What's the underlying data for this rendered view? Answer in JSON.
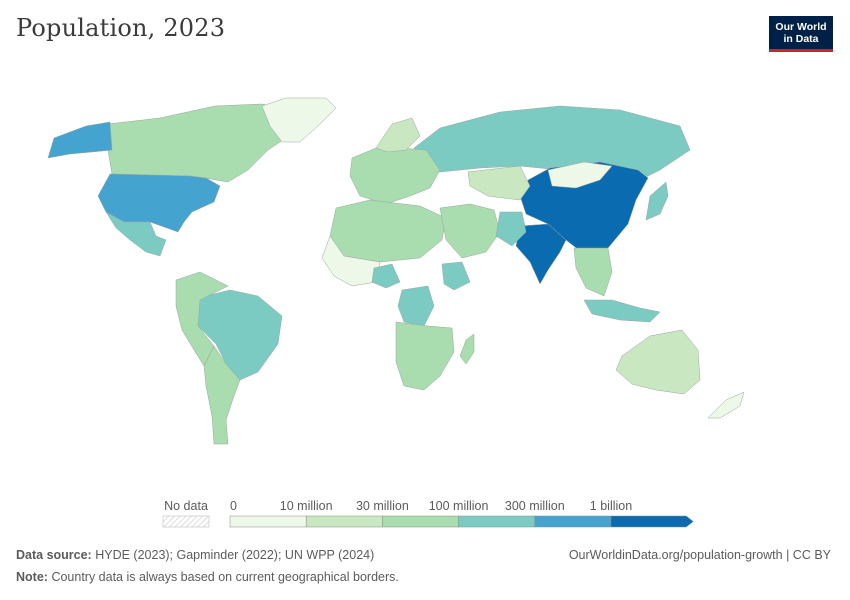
{
  "header": {
    "title": "Population, 2023",
    "logo_line1": "Our World",
    "logo_line2": "in Data"
  },
  "legend": {
    "no_data_label": "No data",
    "bins": [
      {
        "label": "0",
        "color": "#eef8e8"
      },
      {
        "label": "10 million",
        "color": "#c9e8c2"
      },
      {
        "label": "30 million",
        "color": "#a9dcaf"
      },
      {
        "label": "100 million",
        "color": "#7ccbc3"
      },
      {
        "label": "300 million",
        "color": "#44a3cf"
      },
      {
        "label": "1 billion",
        "color": "#0a6bb0"
      }
    ]
  },
  "footer": {
    "source_label": "Data source:",
    "source_text": "HYDE (2023); Gapminder (2022); UN WPP (2024)",
    "url_text": "OurWorldinData.org/population-growth | CC BY",
    "note_label": "Note:",
    "note_text": "Country data is always based on current geographical borders."
  },
  "map_regions": [
    {
      "name": "canada",
      "color": "#a9dcaf"
    },
    {
      "name": "alaska",
      "color": "#44a3cf"
    },
    {
      "name": "usa",
      "color": "#44a3cf"
    },
    {
      "name": "mexico",
      "color": "#7ccbc3"
    },
    {
      "name": "greenland",
      "color": "#eef8e8"
    },
    {
      "name": "brazil",
      "color": "#7ccbc3"
    },
    {
      "name": "south-america-west",
      "color": "#a9dcaf"
    },
    {
      "name": "argentina",
      "color": "#a9dcaf"
    },
    {
      "name": "russia",
      "color": "#7ccbc3"
    },
    {
      "name": "china",
      "color": "#0a6bb0"
    },
    {
      "name": "india",
      "color": "#0a6bb0"
    },
    {
      "name": "mongolia",
      "color": "#eef8e8"
    },
    {
      "name": "kazakhstan",
      "color": "#c9e8c2"
    },
    {
      "name": "europe",
      "color": "#a9dcaf"
    },
    {
      "name": "scandinavia",
      "color": "#c9e8c2"
    },
    {
      "name": "north-africa",
      "color": "#a9dcaf"
    },
    {
      "name": "sahel",
      "color": "#eef8e8"
    },
    {
      "name": "nigeria",
      "color": "#7ccbc3"
    },
    {
      "name": "ethiopia",
      "color": "#7ccbc3"
    },
    {
      "name": "drc",
      "color": "#7ccbc3"
    },
    {
      "name": "southern-africa",
      "color": "#a9dcaf"
    },
    {
      "name": "middle-east",
      "color": "#a9dcaf"
    },
    {
      "name": "pakistan",
      "color": "#7ccbc3"
    },
    {
      "name": "southeast-asia",
      "color": "#a9dcaf"
    },
    {
      "name": "indonesia",
      "color": "#7ccbc3"
    },
    {
      "name": "japan",
      "color": "#7ccbc3"
    },
    {
      "name": "australia",
      "color": "#c9e8c2"
    },
    {
      "name": "new-zealand",
      "color": "#eef8e8"
    },
    {
      "name": "madagascar",
      "color": "#a9dcaf"
    }
  ]
}
